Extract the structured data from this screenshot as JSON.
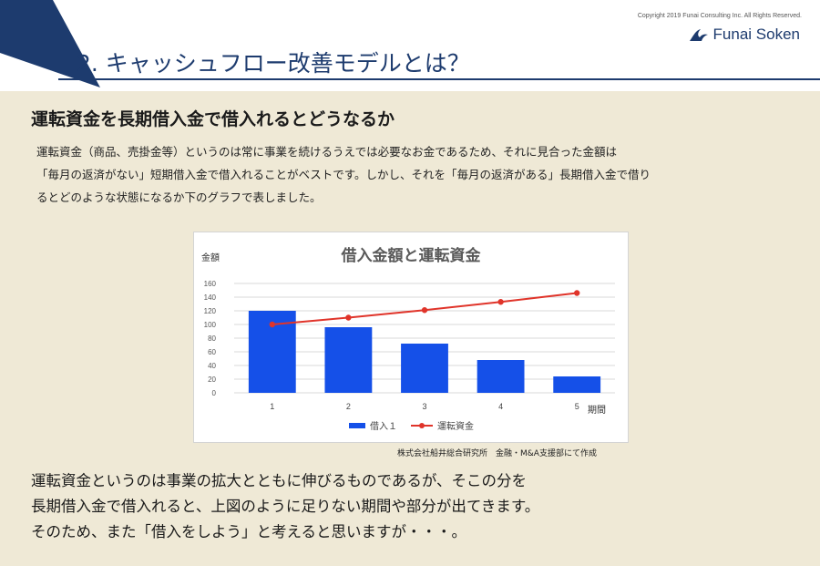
{
  "header": {
    "copyright": "Copyright 2019  Funai Consulting Inc. All  Rights  Reserved.",
    "logo_text": "Funai Soken",
    "title": "2. キャッシュフロー改善モデルとは？",
    "accent_color": "#1d3b6e"
  },
  "section": {
    "heading": "運転資金を長期借入金で借入れるとどうなるか",
    "paragraph_lines": [
      "運転資金（商品、売掛金等）というのは常に事業を続けるうえでは必要なお金であるため、それに見合った金額は",
      "「毎月の返済がない」短期借入金で借入れることがベストです。しかし、それを「毎月の返済がある」長期借入金で借り",
      "るとどのような状態になるか下のグラフで表しました。"
    ]
  },
  "chart_data": {
    "type": "bar",
    "title": "借入金額と運転資金",
    "ylabel": "金額",
    "xlabel": "期間",
    "categories": [
      "1",
      "2",
      "3",
      "4",
      "5"
    ],
    "ylim": [
      0,
      160
    ],
    "yticks": [
      0,
      20,
      40,
      60,
      80,
      100,
      120,
      140,
      160
    ],
    "grid": true,
    "legend_position": "bottom",
    "series": [
      {
        "name": "借入１",
        "type": "bar",
        "color": "#1550e8",
        "values": [
          120,
          96,
          72,
          48,
          24
        ]
      },
      {
        "name": "運転資金",
        "type": "line",
        "color": "#e0342a",
        "values": [
          100,
          110,
          121,
          133,
          146
        ]
      }
    ]
  },
  "source_note": "株式会社船井総合研究所　金融・M&A支援部にて作成",
  "conclusion_lines": [
    "運転資金というのは事業の拡大とともに伸びるものであるが、そこの分を",
    "長期借入金で借入れると、上図のように足りない期間や部分が出てきます。",
    "そのため、また「借入をしよう」と考えると思いますが・・・。"
  ]
}
